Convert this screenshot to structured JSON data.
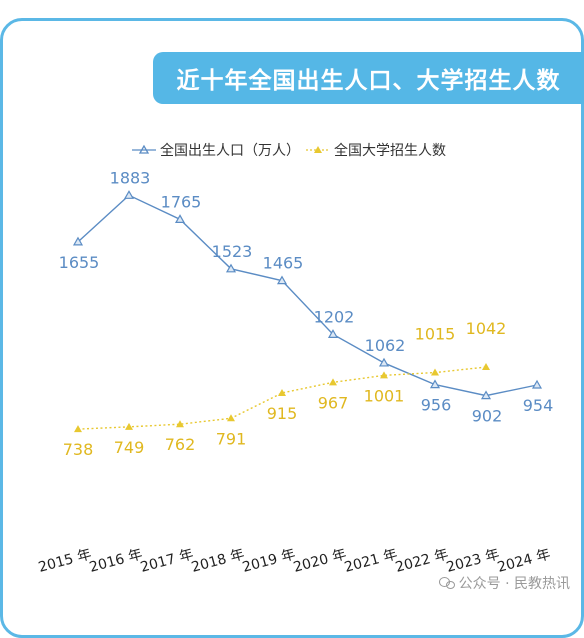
{
  "title": "近十年全国出生人口、大学招生人数",
  "watermark": "公众号 · 民教热讯",
  "colors": {
    "birth": "#5b8cc4",
    "enroll": "#e8c830",
    "banner": "#55b7e6"
  },
  "chart_data": {
    "type": "line",
    "categories": [
      "2015 年",
      "2016 年",
      "2017 年",
      "2018 年",
      "2019 年",
      "2020 年",
      "2021 年",
      "2022 年",
      "2023 年",
      "2024 年"
    ],
    "series": [
      {
        "name": "全国出生人口（万人）",
        "values": [
          1655,
          1883,
          1765,
          1523,
          1465,
          1202,
          1062,
          956,
          902,
          954
        ]
      },
      {
        "name": "全国大学招生人数",
        "values": [
          738,
          749,
          762,
          791,
          915,
          967,
          1001,
          1015,
          1042,
          null
        ]
      }
    ],
    "grid": false,
    "legend": "top-center"
  }
}
